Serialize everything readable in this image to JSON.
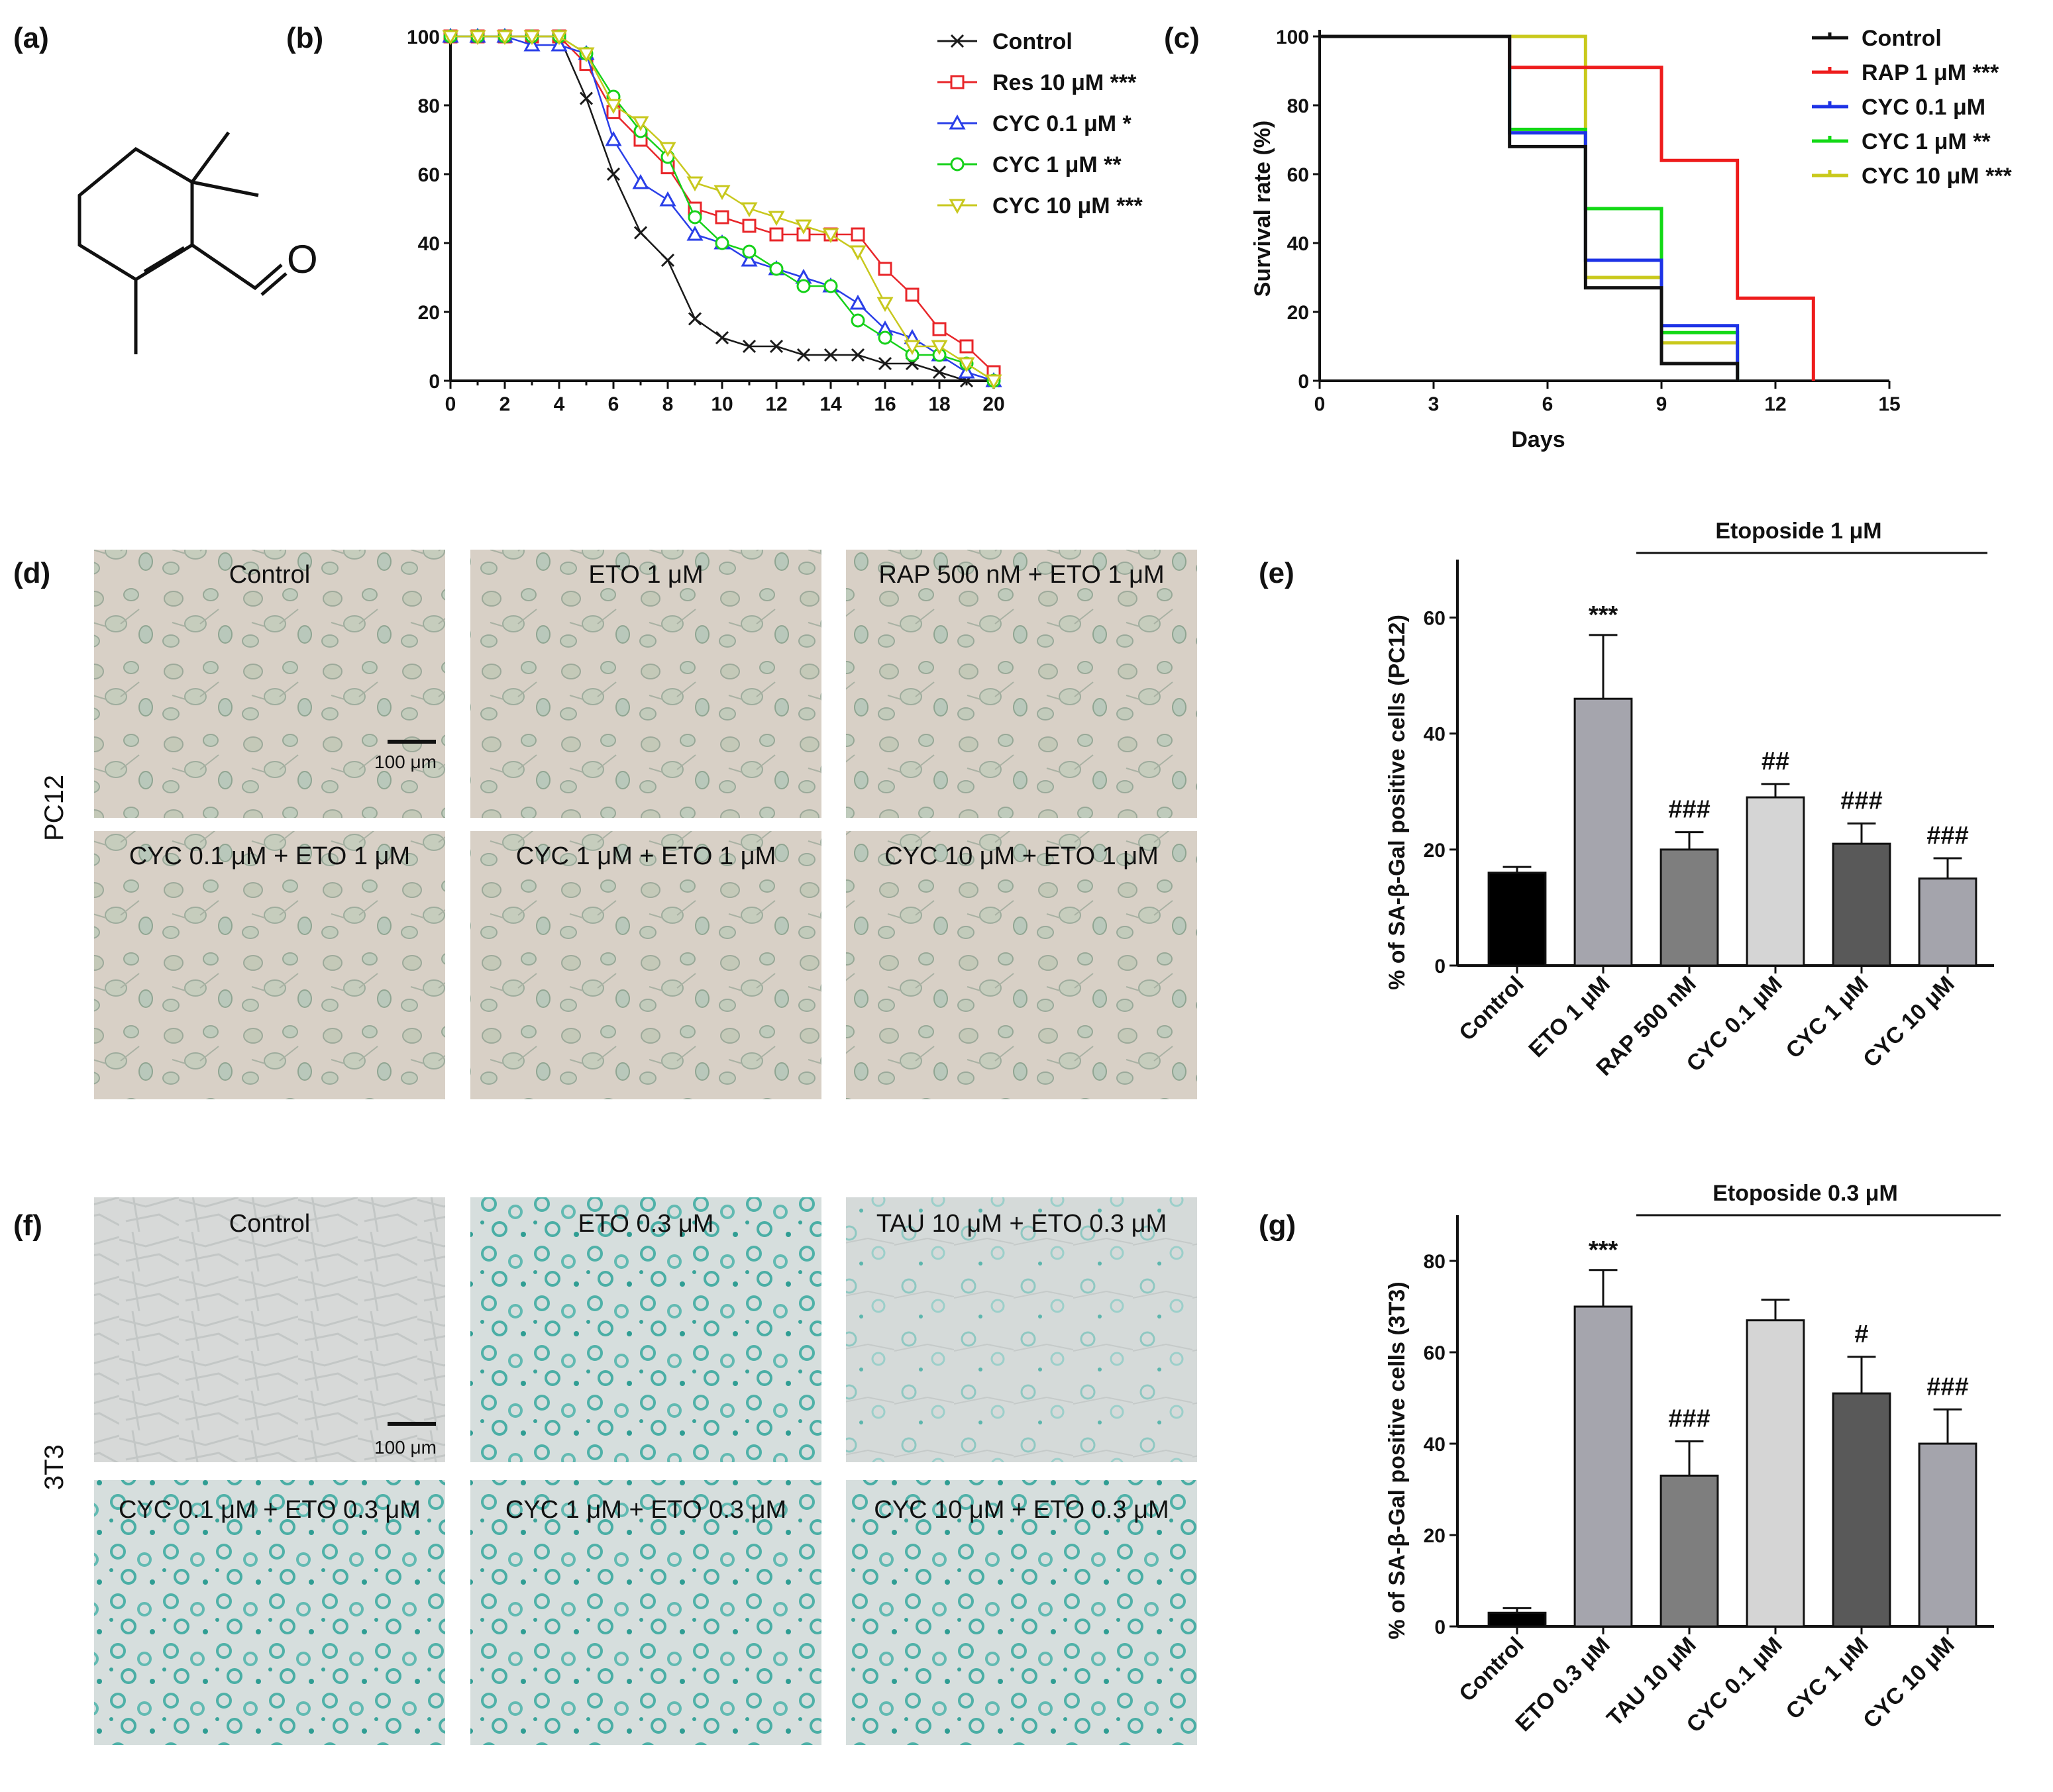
{
  "panel_labels": [
    "(a)",
    "(b)",
    "(c)",
    "(d)",
    "(e)",
    "(f)",
    "(g)"
  ],
  "chart_data": [
    {
      "id": "b",
      "type": "line",
      "x": [
        0,
        1,
        2,
        3,
        4,
        5,
        6,
        7,
        8,
        9,
        10,
        11,
        12,
        13,
        14,
        15,
        16,
        17,
        18,
        19,
        20
      ],
      "xlim": [
        0,
        20
      ],
      "ylim": [
        0,
        100
      ],
      "xticks": [
        "0",
        "2",
        "4",
        "6",
        "8",
        "10",
        "12",
        "14",
        "16",
        "18",
        "20"
      ],
      "yticks": [
        "0",
        "20",
        "40",
        "60",
        "80",
        "100"
      ],
      "xlabel": "",
      "ylabel": "",
      "legend_position": "right",
      "series": [
        {
          "name": "Control",
          "color": "#1a1a1a",
          "marker": "x",
          "values": [
            100,
            100,
            100,
            100,
            100,
            82,
            60,
            43,
            35,
            18,
            12.5,
            10,
            10,
            7.5,
            7.5,
            7.5,
            5,
            5,
            2.5,
            0,
            0
          ]
        },
        {
          "name": "Res 10 μM ***",
          "color": "#e8262a",
          "marker": "square",
          "values": [
            100,
            100,
            100,
            100,
            100,
            92,
            78,
            70,
            62,
            50,
            47.5,
            45,
            42.5,
            42.5,
            42.5,
            42.5,
            32.5,
            25,
            15,
            10,
            2.5
          ]
        },
        {
          "name": "CYC 0.1 μM *",
          "color": "#2a3fe8",
          "marker": "triangle",
          "values": [
            100,
            100,
            100,
            97.5,
            97.5,
            95,
            70,
            57.5,
            52.5,
            42.5,
            40,
            35,
            32.5,
            30,
            27.5,
            22.5,
            15,
            12.5,
            7.5,
            2.5,
            0
          ]
        },
        {
          "name": "CYC 1 μM **",
          "color": "#16d11a",
          "marker": "circle",
          "values": [
            100,
            100,
            100,
            100,
            100,
            95,
            82.5,
            72.5,
            65,
            47.5,
            40,
            37.5,
            32.5,
            27.5,
            27.5,
            17.5,
            12.5,
            7.5,
            7.5,
            5,
            0
          ]
        },
        {
          "name": "CYC 10 μM ***",
          "color": "#c8c81e",
          "marker": "triangle-down",
          "values": [
            100,
            100,
            100,
            100,
            100,
            95,
            80,
            75,
            67.5,
            57.5,
            55,
            50,
            47.5,
            45,
            42.5,
            37.5,
            22.5,
            10,
            10,
            5,
            0
          ]
        }
      ]
    },
    {
      "id": "c",
      "type": "line",
      "step": true,
      "xlim": [
        0,
        15
      ],
      "ylim": [
        0,
        100
      ],
      "xticks": [
        "0",
        "3",
        "6",
        "9",
        "12",
        "15"
      ],
      "yticks": [
        "0",
        "20",
        "40",
        "60",
        "80",
        "100"
      ],
      "xlabel": "Days",
      "ylabel": "Survival rate (%)",
      "legend_position": "right",
      "series": [
        {
          "name": "Control",
          "color": "#111111",
          "x": [
            0,
            5,
            7,
            9,
            11
          ],
          "values": [
            100,
            68,
            27,
            5,
            0
          ]
        },
        {
          "name": "RAP 1 μM ***",
          "color": "#ee1c1c",
          "x": [
            0,
            5,
            9,
            11,
            13
          ],
          "values": [
            100,
            91,
            64,
            24,
            0
          ]
        },
        {
          "name": "CYC 0.1 μM",
          "color": "#1e33e6",
          "x": [
            0,
            5,
            7,
            9,
            11
          ],
          "values": [
            100,
            72,
            35,
            16,
            0
          ]
        },
        {
          "name": "CYC 1 μM **",
          "color": "#12d915",
          "x": [
            0,
            5,
            7,
            9,
            11
          ],
          "values": [
            100,
            73,
            50,
            14,
            0
          ]
        },
        {
          "name": "CYC 10 μM ***",
          "color": "#c9c91c",
          "x": [
            0,
            5,
            7,
            9,
            11
          ],
          "values": [
            100,
            100,
            30,
            11,
            0
          ]
        }
      ]
    },
    {
      "id": "e",
      "type": "bar",
      "title": "Etoposide  1 μM",
      "ylabel": "% of SA-β-Gal positive cells (PC12)",
      "ylim": [
        0,
        70
      ],
      "yticks": [
        "0",
        "20",
        "40",
        "60"
      ],
      "categories": [
        "Control",
        "ETO 1 μM",
        "RAP 500 nM",
        "CYC 0.1 μM",
        "CYC 1 μM",
        "CYC 10 μM"
      ],
      "values": [
        16,
        46,
        20,
        29,
        21,
        15
      ],
      "errors": [
        1,
        11,
        3,
        2.3,
        3.5,
        3.5
      ],
      "colors": [
        "#000000",
        "#a5a5ad",
        "#7e7e7e",
        "#d5d5d5",
        "#595959",
        "#a4a4ac"
      ],
      "significance": [
        "",
        "***",
        "###",
        "##",
        "###",
        "###"
      ]
    },
    {
      "id": "g",
      "type": "bar",
      "title": "Etoposide  0.3 μM",
      "ylabel": "% of SA-β-Gal positive cells (3T3)",
      "ylim": [
        0,
        90
      ],
      "yticks": [
        "0",
        "20",
        "40",
        "60",
        "80"
      ],
      "categories": [
        "Control",
        "ETO 0.3 μM",
        "TAU 10 μM",
        "CYC 0.1 μM",
        "CYC 1 μM",
        "CYC 10 μM"
      ],
      "values": [
        3,
        70,
        33,
        67,
        51,
        40
      ],
      "errors": [
        1,
        8,
        7.5,
        4.5,
        8,
        7.5
      ],
      "colors": [
        "#000000",
        "#a5a5ad",
        "#7e7e7e",
        "#d5d5d5",
        "#595959",
        "#a4a4ac"
      ],
      "significance": [
        "",
        "***",
        "###",
        "",
        "#",
        "###"
      ]
    }
  ],
  "micrographs_d": {
    "side_label": "PC12",
    "scale_bar": "100 μm",
    "labels": [
      "Control",
      "ETO 1 μM",
      "RAP 500 nM + ETO 1 μM",
      "CYC 0.1 μM + ETO 1 μM",
      "CYC 1 μM + ETO 1 μM",
      "CYC 10 μM + ETO 1 μM"
    ]
  },
  "micrographs_f": {
    "side_label": "3T3",
    "scale_bar": "100 μm",
    "labels": [
      "Control",
      "ETO 0.3 μM",
      "TAU 10 μM + ETO 0.3 μM",
      "CYC 0.1 μM + ETO 0.3 μM",
      "CYC 1 μM + ETO 0.3 μM",
      "CYC 10 μM + ETO 0.3 μM"
    ]
  },
  "structure_a": {
    "atom": "O"
  }
}
